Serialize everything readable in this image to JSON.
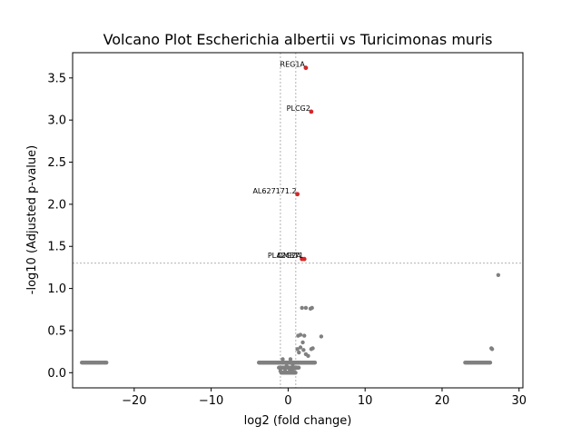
{
  "chart_data": {
    "type": "scatter",
    "title": "Volcano Plot Escherichia albertii vs Turicimonas muris",
    "xlabel": "log2 (fold change)",
    "ylabel": "-log10 (Adjusted p-value)",
    "xlim": [
      -28,
      30.5
    ],
    "ylim": [
      -0.18,
      3.8
    ],
    "xticks": [
      -20,
      -10,
      0,
      10,
      20,
      30
    ],
    "xtick_labels": [
      "−20",
      "−10",
      "0",
      "10",
      "20",
      "30"
    ],
    "yticks": [
      0.0,
      0.5,
      1.0,
      1.5,
      2.0,
      2.5,
      3.0,
      3.5
    ],
    "ytick_labels": [
      "0.0",
      "0.5",
      "1.0",
      "1.5",
      "2.0",
      "2.5",
      "3.0",
      "3.5"
    ],
    "threshold_lines": {
      "x": [
        -1,
        1
      ],
      "y": 1.3
    },
    "colors": {
      "significant": "#d62728",
      "nonsignificant": "#808080",
      "threshold": "#808080"
    },
    "significant_points": [
      {
        "label": "REG1A",
        "x": 2.3,
        "y": 3.62
      },
      {
        "label": "PLCG2",
        "x": 3.0,
        "y": 3.1
      },
      {
        "label": "AL627171.2",
        "x": 1.2,
        "y": 2.12
      },
      {
        "label": "PLA2G2A",
        "x": 1.8,
        "y": 1.35
      },
      {
        "label": "DMBT1",
        "x": 2.1,
        "y": 1.35
      }
    ],
    "nonsignificant_points": [
      {
        "x": 27.3,
        "y": 1.16
      },
      {
        "x": 1.8,
        "y": 0.77
      },
      {
        "x": 2.3,
        "y": 0.77
      },
      {
        "x": 2.9,
        "y": 0.76
      },
      {
        "x": 3.1,
        "y": 0.77
      },
      {
        "x": 1.6,
        "y": 0.45
      },
      {
        "x": 2.1,
        "y": 0.44
      },
      {
        "x": 1.3,
        "y": 0.44
      },
      {
        "x": 4.3,
        "y": 0.43
      },
      {
        "x": 1.9,
        "y": 0.36
      },
      {
        "x": 1.6,
        "y": 0.3
      },
      {
        "x": 1.4,
        "y": 0.24
      },
      {
        "x": 1.2,
        "y": 0.28
      },
      {
        "x": 2.0,
        "y": 0.27
      },
      {
        "x": 2.3,
        "y": 0.22
      },
      {
        "x": 2.6,
        "y": 0.2
      },
      {
        "x": 3.0,
        "y": 0.28
      },
      {
        "x": 3.2,
        "y": 0.29
      },
      {
        "x": 26.4,
        "y": 0.29
      },
      {
        "x": 26.5,
        "y": 0.28
      },
      {
        "x": -0.7,
        "y": 0.16
      },
      {
        "x": 0.3,
        "y": 0.16
      },
      {
        "x": -0.4,
        "y": 0.04
      },
      {
        "x": 0.2,
        "y": 0.02
      },
      {
        "x": 0.5,
        "y": 0.03
      },
      {
        "x": 0.8,
        "y": 0.05
      },
      {
        "x": -0.2,
        "y": 0.08
      },
      {
        "x": 0.6,
        "y": 0.1
      },
      {
        "x": 1.0,
        "y": 0.12
      },
      {
        "x": -1.0,
        "y": 0.02
      },
      {
        "x": 0.1,
        "y": 0.0
      },
      {
        "x": 0.4,
        "y": 0.01
      }
    ],
    "nonsignificant_bands": [
      {
        "x_from": -26.8,
        "x_to": -24.2,
        "y": 0.12,
        "step": 0.13
      },
      {
        "x_from": -24.0,
        "x_to": -23.6,
        "y": 0.12,
        "step": 0.13
      },
      {
        "x_from": -3.8,
        "x_to": 3.5,
        "y": 0.12,
        "step": 0.07
      },
      {
        "x_from": -1.2,
        "x_to": 1.4,
        "y": 0.06,
        "step": 0.06
      },
      {
        "x_from": -0.9,
        "x_to": 1.0,
        "y": 0.0,
        "step": 0.06
      },
      {
        "x_from": 23.0,
        "x_to": 26.3,
        "y": 0.12,
        "step": 0.13
      }
    ]
  }
}
